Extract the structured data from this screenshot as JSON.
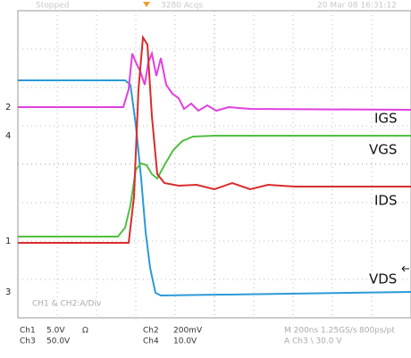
{
  "header": {
    "status": "Stopped",
    "acquisitions": "3280 Acqs",
    "timestamp": "20 Mar 08 16:31:12"
  },
  "traces": {
    "igs": "IGS",
    "vgs": "VGS",
    "ids": "IDS",
    "vds": "VDS"
  },
  "channel_markers": {
    "ch2": "2",
    "ch4": "4",
    "ch1": "1",
    "ch3": "3"
  },
  "math_note": "CH1 & CH2:A/Div",
  "readout": {
    "ch1": "Ch1",
    "ch1_scale": "5.0V",
    "ch1_coupling": "Ω",
    "ch3": "Ch3",
    "ch3_scale": "50.0V",
    "ch2": "Ch2",
    "ch2_scale": "200mV",
    "ch4": "Ch4",
    "ch4_scale": "10.0V",
    "timebase": "M 200ns 1.25GS/s",
    "resolution": "800ps/pt",
    "trigger": "A  Ch3  \\  30.0  V"
  }
}
